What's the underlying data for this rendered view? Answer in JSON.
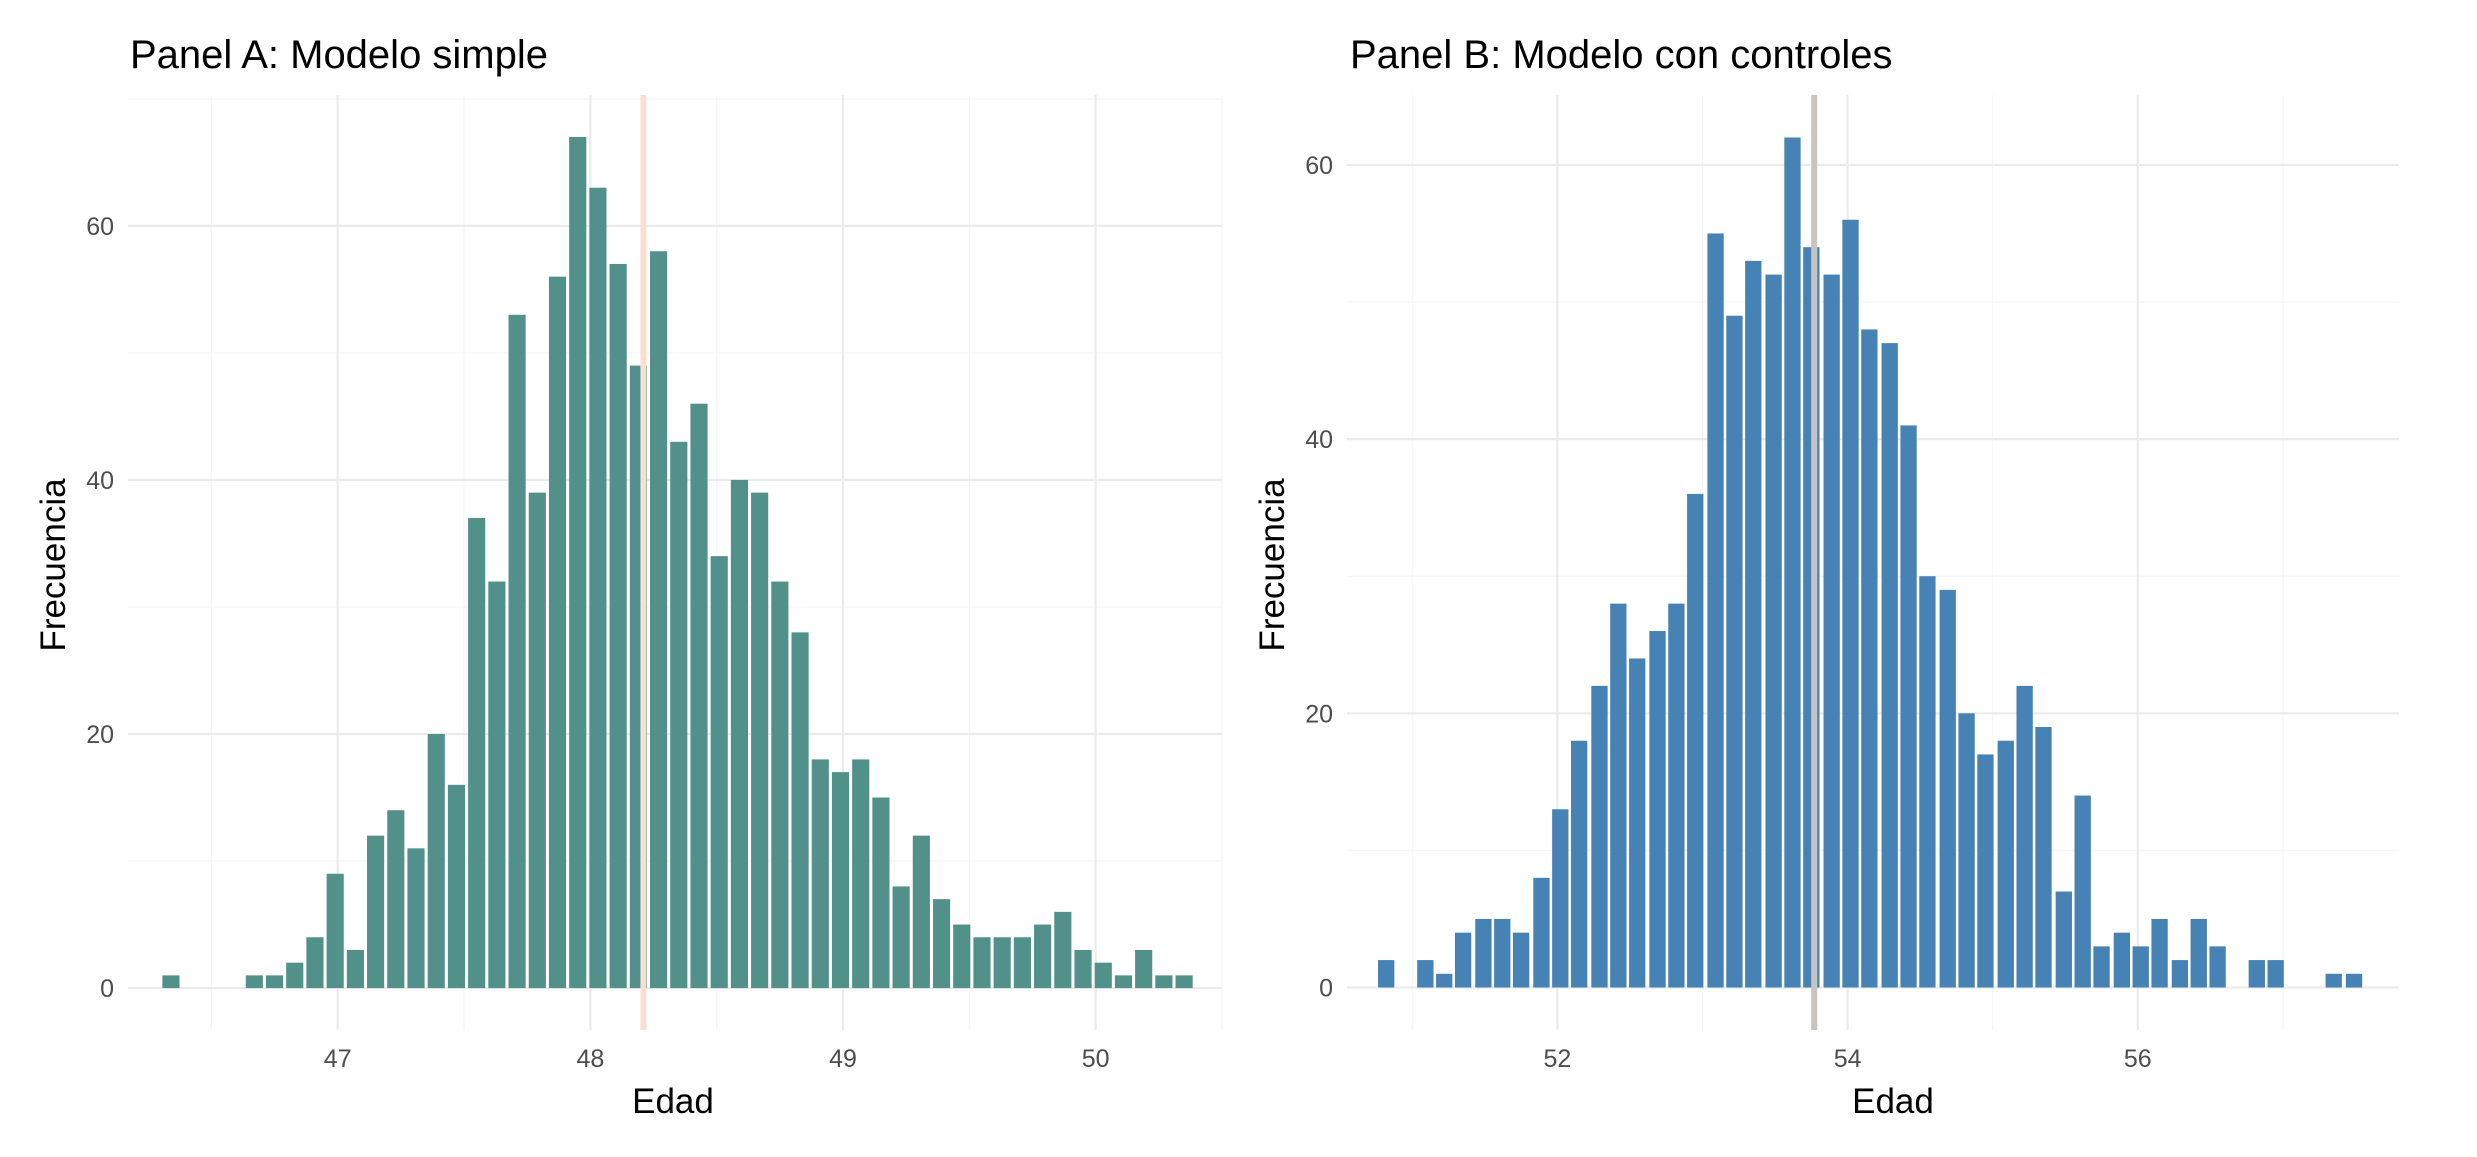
{
  "chart_data": [
    {
      "type": "bar",
      "title": "Panel A: Modelo simple",
      "xlabel": "Edad",
      "ylabel": "Frecuencia",
      "bar_color": "#52908A",
      "ref_line_color": "#FBDED3",
      "ref_line_x": 48.21,
      "xlim": [
        46.17,
        50.5
      ],
      "ylim": [
        -3.3,
        70.3
      ],
      "xticks": [
        47,
        48,
        49,
        50
      ],
      "xminor": [
        46.5,
        47.5,
        48.5,
        49.5,
        50.5
      ],
      "yticks": [
        0,
        20,
        40,
        60
      ],
      "yminor": [
        10,
        30,
        50,
        70
      ],
      "bin_width": 0.0797,
      "x": [
        46.34,
        46.67,
        46.75,
        46.83,
        46.91,
        46.99,
        47.07,
        47.15,
        47.23,
        47.31,
        47.39,
        47.47,
        47.55,
        47.63,
        47.71,
        47.79,
        47.87,
        47.95,
        48.03,
        48.11,
        48.19,
        48.27,
        48.35,
        48.43,
        48.51,
        48.59,
        48.67,
        48.75,
        48.83,
        48.91,
        48.99,
        49.07,
        49.15,
        49.23,
        49.31,
        49.39,
        49.47,
        49.55,
        49.63,
        49.71,
        49.79,
        49.87,
        49.95,
        50.03,
        50.11,
        50.19,
        50.27,
        50.35
      ],
      "values": [
        1,
        1,
        1,
        2,
        4,
        9,
        3,
        12,
        14,
        11,
        20,
        16,
        37,
        32,
        53,
        39,
        56,
        67,
        63,
        57,
        49,
        58,
        43,
        46,
        34,
        40,
        39,
        32,
        28,
        18,
        17,
        18,
        15,
        8,
        12,
        7,
        5,
        4,
        4,
        4,
        5,
        6,
        3,
        2,
        1,
        3,
        1,
        1
      ]
    },
    {
      "type": "bar",
      "title": "Panel B: Modelo con controles",
      "xlabel": "Edad",
      "ylabel": "Frecuencia",
      "bar_color": "#4682B4",
      "ref_line_color": "#C8C5BF",
      "ref_line_x": 53.77,
      "xlim": [
        50.55,
        57.8
      ],
      "ylim": [
        -3.1,
        65.1
      ],
      "xticks": [
        52,
        54,
        56
      ],
      "xminor": [
        51,
        53,
        55,
        57
      ],
      "yticks": [
        0,
        20,
        40,
        60
      ],
      "yminor": [
        10,
        30,
        50
      ],
      "bin_width": 0.133,
      "x": [
        50.82,
        51.09,
        51.22,
        51.35,
        51.49,
        51.62,
        51.75,
        51.89,
        52.02,
        52.15,
        52.29,
        52.42,
        52.55,
        52.69,
        52.82,
        52.95,
        53.09,
        53.22,
        53.35,
        53.49,
        53.62,
        53.75,
        53.89,
        54.02,
        54.15,
        54.29,
        54.42,
        54.55,
        54.69,
        54.82,
        54.95,
        55.09,
        55.22,
        55.35,
        55.49,
        55.62,
        55.75,
        55.89,
        56.02,
        56.15,
        56.29,
        56.42,
        56.55,
        56.82,
        56.95,
        57.35,
        57.49
      ],
      "values": [
        2,
        2,
        1,
        4,
        5,
        5,
        4,
        8,
        13,
        18,
        22,
        28,
        24,
        26,
        28,
        36,
        55,
        49,
        53,
        52,
        62,
        54,
        52,
        56,
        48,
        47,
        41,
        30,
        29,
        20,
        17,
        18,
        22,
        19,
        7,
        14,
        3,
        4,
        3,
        5,
        2,
        5,
        3,
        2,
        2,
        1,
        1
      ]
    }
  ]
}
